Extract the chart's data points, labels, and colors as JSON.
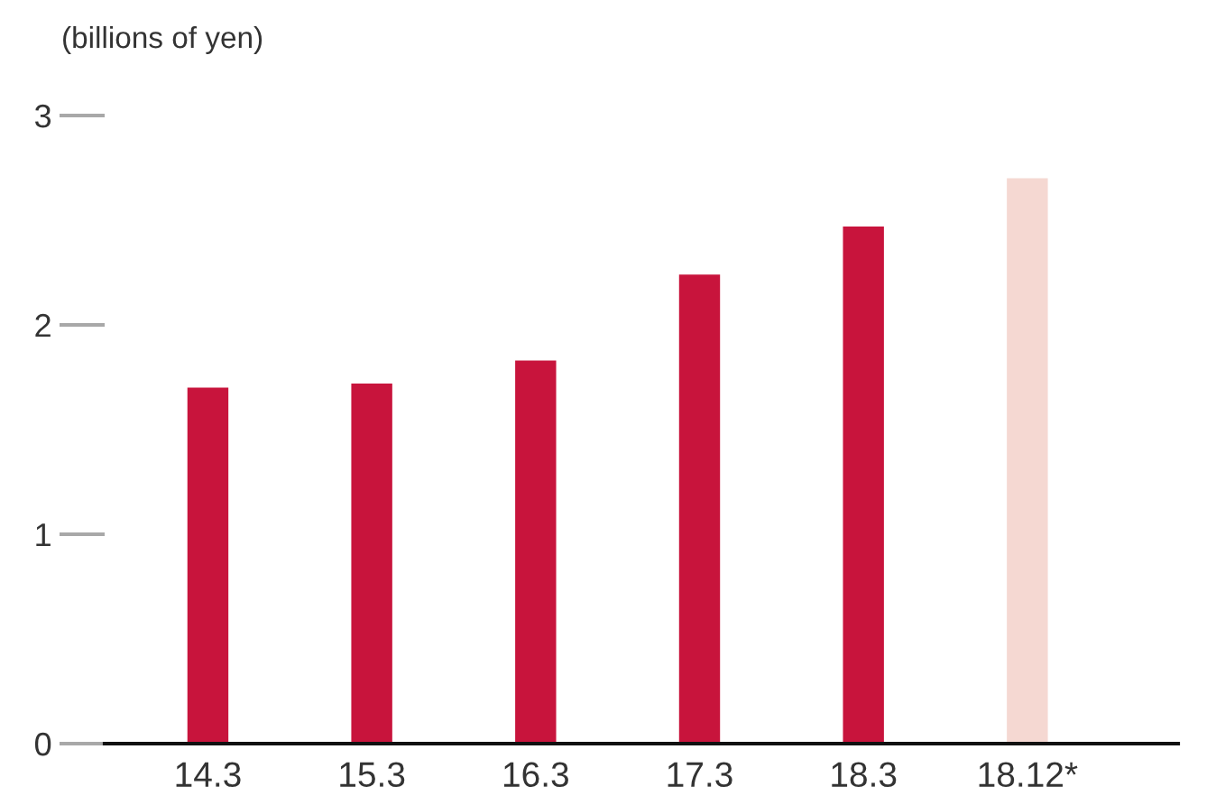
{
  "chart_data": {
    "type": "bar",
    "ylabel": "(billions of yen)",
    "categories": [
      "14.3",
      "15.3",
      "16.3",
      "17.3",
      "18.3",
      "18.12*"
    ],
    "values": [
      1.7,
      1.72,
      1.83,
      2.24,
      2.47,
      2.7
    ],
    "colors": [
      "#c8143c",
      "#c8143c",
      "#c8143c",
      "#c8143c",
      "#c8143c",
      "#f5d8d2"
    ],
    "ylim": [
      0,
      3
    ],
    "yticks": [
      0,
      1,
      2,
      3
    ]
  }
}
